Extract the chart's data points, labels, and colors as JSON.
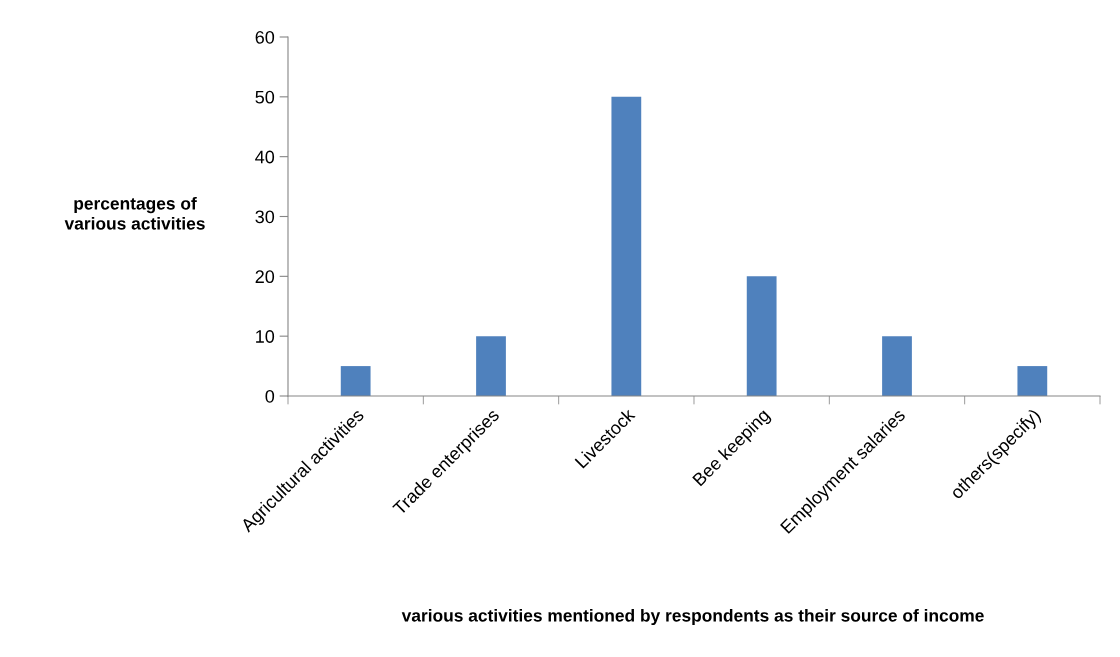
{
  "chart_data": {
    "type": "bar",
    "xlabel": "various activities mentioned by respondents as their source of income",
    "ylabel": "percentages of\nvarious activities",
    "categories": [
      "Agricultural activities",
      "Trade enterprises",
      "Livestock",
      "Bee keeping",
      "Employment salaries",
      "others(specify)"
    ],
    "values": [
      5,
      10,
      50,
      20,
      10,
      5
    ],
    "color": "#4f81bd",
    "ylim": [
      0,
      60
    ],
    "yticks": [
      0,
      10,
      20,
      30,
      40,
      50,
      60
    ],
    "grid": false,
    "legend": false
  }
}
